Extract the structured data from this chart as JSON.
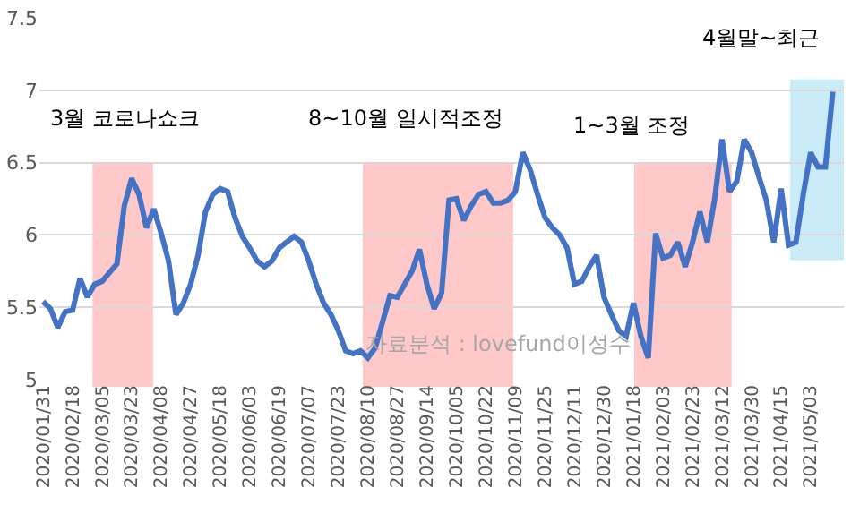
{
  "chart_data": {
    "type": "line",
    "categories": [
      "2020/01/31",
      null,
      null,
      null,
      "2020/02/18",
      null,
      null,
      null,
      "2020/03/05",
      null,
      null,
      null,
      "2020/03/23",
      null,
      null,
      null,
      "2020/04/08",
      null,
      null,
      null,
      "2020/04/27",
      null,
      null,
      null,
      "2020/05/18",
      null,
      null,
      null,
      "2020/06/03",
      null,
      null,
      null,
      "2020/06/19",
      null,
      null,
      null,
      "2020/07/07",
      null,
      null,
      null,
      "2020/07/23",
      null,
      null,
      null,
      "2020/08/10",
      null,
      null,
      null,
      "2020/08/27",
      null,
      null,
      null,
      "2020/09/14",
      null,
      null,
      null,
      "2020/10/05",
      null,
      null,
      null,
      "2020/10/22",
      null,
      null,
      null,
      "2020/11/09",
      null,
      null,
      null,
      "2020/11/25",
      null,
      null,
      null,
      "2020/12/11",
      null,
      null,
      null,
      "2020/12/30",
      null,
      null,
      null,
      "2021/01/18",
      null,
      null,
      null,
      "2021/02/03",
      null,
      null,
      null,
      "2021/02/23",
      null,
      null,
      null,
      "2021/03/12",
      null,
      null,
      null,
      "2021/03/30",
      null,
      null,
      null,
      "2021/04/15",
      null,
      null,
      null,
      "2021/05/03",
      null,
      null,
      null
    ],
    "series": [
      {
        "color": "#4472c4",
        "values": [
          5.54,
          5.49,
          5.36,
          5.47,
          5.48,
          5.7,
          5.57,
          5.66,
          5.68,
          5.74,
          5.8,
          6.2,
          6.39,
          6.28,
          6.05,
          6.18,
          6.01,
          5.82,
          5.45,
          5.53,
          5.66,
          5.86,
          6.16,
          6.28,
          6.32,
          6.3,
          6.12,
          5.99,
          5.91,
          5.82,
          5.78,
          5.82,
          5.91,
          5.95,
          5.99,
          5.95,
          5.82,
          5.66,
          5.53,
          5.45,
          5.34,
          5.2,
          5.18,
          5.2,
          5.15,
          5.22,
          5.4,
          5.58,
          5.57,
          5.66,
          5.75,
          5.9,
          5.66,
          5.49,
          5.6,
          6.24,
          6.25,
          6.1,
          6.2,
          6.28,
          6.3,
          6.22,
          6.22,
          6.24,
          6.3,
          6.57,
          6.45,
          6.28,
          6.12,
          6.05,
          6.0,
          5.91,
          5.66,
          5.68,
          5.78,
          5.86,
          5.57,
          5.45,
          5.34,
          5.3,
          5.53,
          5.3,
          5.15,
          6.01,
          5.84,
          5.86,
          5.95,
          5.78,
          5.95,
          6.16,
          5.95,
          6.25,
          6.66,
          6.3,
          6.37,
          6.66,
          6.57,
          6.4,
          6.24,
          5.95,
          6.32,
          5.93,
          5.95,
          6.28,
          6.57,
          6.47,
          6.47,
          6.99
        ]
      }
    ],
    "ylim": [
      5,
      7.5
    ],
    "yticks": [
      5,
      5.5,
      6,
      6.5,
      7,
      7.5
    ],
    "grid": "y",
    "marker": "none",
    "line_style": "solid",
    "annotations": [
      "3월 코로나쇼크",
      "8~10월 일시적조정",
      "1~3월 조정",
      "4월말~최근",
      "자료분석 : lovefund이성수"
    ]
  }
}
